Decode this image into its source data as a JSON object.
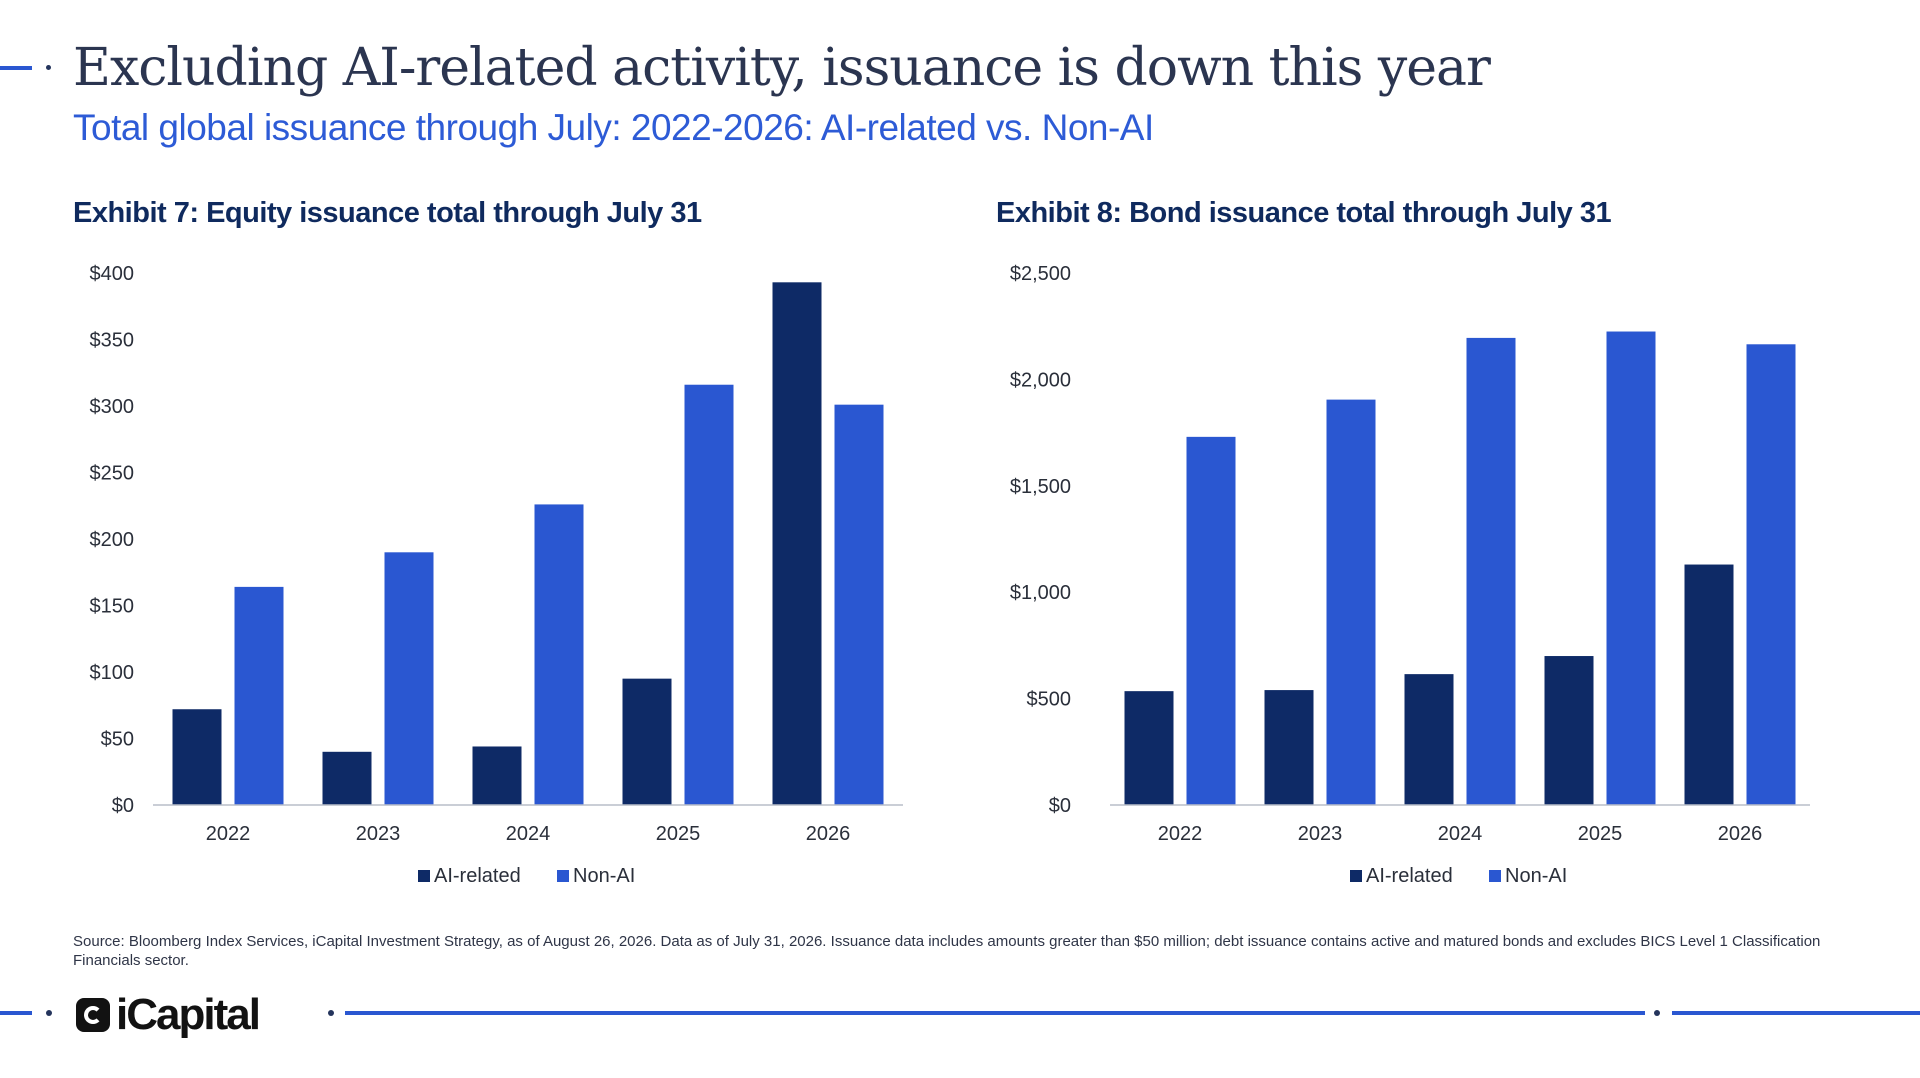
{
  "header": {
    "title": "Excluding AI-related activity, issuance is down this year",
    "subtitle": "Total global issuance through July: 2022-2026: AI-related vs. Non-AI"
  },
  "colors": {
    "ai_related": "#0e2a66",
    "non_ai": "#2a57d1",
    "axis": "#b9bec8",
    "accent_line": "#2a57d1"
  },
  "chart_data": [
    {
      "type": "bar",
      "title": "Exhibit 7: Equity issuance total through July 31",
      "categories": [
        "2022",
        "2023",
        "2024",
        "2025",
        "2026"
      ],
      "series": [
        {
          "name": "AI-related",
          "values": [
            72,
            40,
            44,
            95,
            393
          ]
        },
        {
          "name": "Non-AI",
          "values": [
            164,
            190,
            226,
            316,
            301
          ]
        }
      ],
      "ylim": [
        0,
        400
      ],
      "yticks": [
        0,
        50,
        100,
        150,
        200,
        250,
        300,
        350,
        400
      ],
      "ytick_labels": [
        "$0",
        "$50",
        "$100",
        "$150",
        "$200",
        "$250",
        "$300",
        "$350",
        "$400"
      ],
      "grid": false,
      "legend": "bottom"
    },
    {
      "type": "bar",
      "title": "Exhibit 8: Bond issuance total through July 31",
      "categories": [
        "2022",
        "2023",
        "2024",
        "2025",
        "2026"
      ],
      "series": [
        {
          "name": "AI-related",
          "values": [
            535,
            540,
            615,
            700,
            1130
          ]
        },
        {
          "name": "Non-AI",
          "values": [
            1730,
            1905,
            2195,
            2225,
            2165
          ]
        }
      ],
      "ylim": [
        0,
        2500
      ],
      "yticks": [
        0,
        500,
        1000,
        1500,
        2000,
        2500
      ],
      "ytick_labels": [
        "$0",
        "$500",
        "$1,000",
        "$1,500",
        "$2,000",
        "$2,500"
      ],
      "grid": false,
      "legend": "bottom"
    }
  ],
  "footer": {
    "source": "Source: Bloomberg Index Services, iCapital Investment Strategy, as of August 26, 2026. Data as of July 31, 2026. Issuance data includes amounts greater than $50 million; debt issuance contains active and matured bonds and excludes BICS Level 1 Classification Financials sector.",
    "logo_text": "iCapital"
  }
}
